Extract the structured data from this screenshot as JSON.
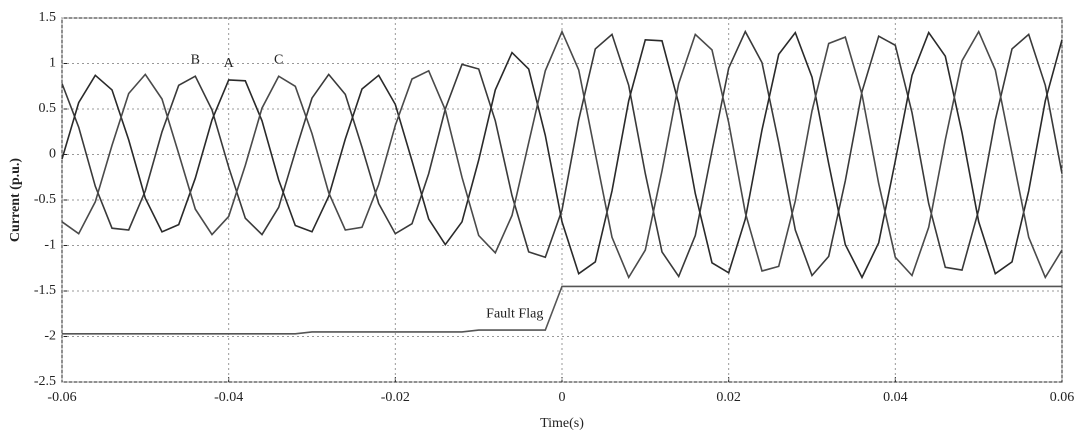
{
  "chart_data": {
    "type": "line",
    "xlabel": "Time(s)",
    "ylabel": "Current (p.u.)",
    "x": [
      -0.06,
      -0.058,
      -0.056,
      -0.054,
      -0.052,
      -0.05,
      -0.048,
      -0.046,
      -0.044,
      -0.042,
      -0.04,
      -0.038,
      -0.036,
      -0.034,
      -0.032,
      -0.03,
      -0.028,
      -0.026,
      -0.024,
      -0.022,
      -0.02,
      -0.018,
      -0.016,
      -0.014,
      -0.012,
      -0.01,
      -0.008,
      -0.006,
      -0.004,
      -0.002,
      0,
      0.002,
      0.004,
      0.006,
      0.008,
      0.01,
      0.012,
      0.014,
      0.016,
      0.018,
      0.02,
      0.022,
      0.024,
      0.026,
      0.028,
      0.03,
      0.032,
      0.034,
      0.036,
      0.038,
      0.04,
      0.042,
      0.044,
      0.046,
      0.048,
      0.05,
      0.052,
      0.054,
      0.056,
      0.058,
      0.06
    ],
    "series": [
      {
        "name": "B",
        "color": "#3a3a3a",
        "values": [
          0.78,
          0.3,
          -0.35,
          -0.81,
          -0.83,
          -0.4,
          0.25,
          0.76,
          0.86,
          0.49,
          -0.14,
          -0.7,
          -0.88,
          -0.58,
          0.03,
          0.62,
          0.88,
          0.66,
          0.08,
          -0.54,
          -0.87,
          -0.76,
          -0.21,
          0.5,
          0.99,
          0.94,
          0.37,
          -0.45,
          -1.07,
          -1.13,
          -0.61,
          0.38,
          1.16,
          1.32,
          0.76,
          -0.21,
          -1.07,
          -1.34,
          -0.89,
          0.04,
          0.95,
          1.35,
          1.01,
          0.13,
          -0.83,
          -1.33,
          -1.12,
          -0.29,
          0.69,
          1.3,
          1.2,
          0.46,
          -0.54,
          -1.24,
          -1.27,
          -0.61,
          0.38,
          1.16,
          1.32,
          0.76,
          -0.21
        ]
      },
      {
        "name": "A",
        "color": "#2a2a2a",
        "values": [
          -0.05,
          0.57,
          0.87,
          0.71,
          0.16,
          -0.48,
          -0.85,
          -0.77,
          -0.26,
          0.38,
          0.82,
          0.81,
          0.37,
          -0.28,
          -0.78,
          -0.85,
          -0.46,
          0.17,
          0.72,
          0.87,
          0.55,
          -0.07,
          -0.71,
          -0.99,
          -0.74,
          -0.06,
          0.71,
          1.12,
          0.94,
          0.21,
          -0.74,
          -1.31,
          -1.18,
          -0.4,
          0.59,
          1.26,
          1.25,
          0.56,
          -0.43,
          -1.19,
          -1.3,
          -0.71,
          0.27,
          1.1,
          1.34,
          0.85,
          -0.1,
          -0.99,
          -1.35,
          -0.97,
          -0.07,
          0.87,
          1.34,
          1.08,
          0.24,
          -0.74,
          -1.31,
          -1.18,
          -0.4,
          0.59,
          1.26
        ]
      },
      {
        "name": "C",
        "color": "#4a4a4a",
        "values": [
          -0.74,
          -0.87,
          -0.52,
          0.1,
          0.67,
          0.88,
          0.61,
          0.01,
          -0.6,
          -0.88,
          -0.68,
          -0.12,
          0.51,
          0.86,
          0.75,
          0.23,
          -0.42,
          -0.83,
          -0.8,
          -0.33,
          0.32,
          0.83,
          0.92,
          0.49,
          -0.25,
          -0.89,
          -1.08,
          -0.67,
          0.13,
          0.92,
          1.35,
          0.93,
          0.01,
          -0.91,
          -1.35,
          -1.05,
          -0.18,
          0.78,
          1.32,
          1.15,
          0.35,
          -0.64,
          -1.28,
          -1.23,
          -0.51,
          0.48,
          1.22,
          1.29,
          0.66,
          -0.32,
          -1.13,
          -1.33,
          -0.8,
          0.16,
          1.03,
          1.35,
          0.93,
          0.01,
          -0.91,
          -1.35,
          -1.05
        ]
      },
      {
        "name": "Fault Flag",
        "color": "#555555",
        "values": [
          -1.97,
          -1.97,
          -1.97,
          -1.97,
          -1.97,
          -1.97,
          -1.97,
          -1.97,
          -1.97,
          -1.97,
          -1.97,
          -1.97,
          -1.97,
          -1.97,
          -1.97,
          -1.95,
          -1.95,
          -1.95,
          -1.95,
          -1.95,
          -1.95,
          -1.95,
          -1.95,
          -1.95,
          -1.95,
          -1.93,
          -1.93,
          -1.93,
          -1.93,
          -1.93,
          -1.45,
          -1.45,
          -1.45,
          -1.45,
          -1.45,
          -1.45,
          -1.45,
          -1.45,
          -1.45,
          -1.45,
          -1.45,
          -1.45,
          -1.45,
          -1.45,
          -1.45,
          -1.45,
          -1.45,
          -1.45,
          -1.45,
          -1.45,
          -1.45,
          -1.45,
          -1.45,
          -1.45,
          -1.45,
          -1.45,
          -1.45,
          -1.45,
          -1.45,
          -1.45,
          -1.45
        ]
      }
    ],
    "xlim": [
      -0.06,
      0.06
    ],
    "xticks": [
      -0.06,
      -0.04,
      -0.02,
      0,
      0.02,
      0.04,
      0.06
    ],
    "ylim": [
      -2.5,
      1.5
    ],
    "yticks": [
      -2.5,
      -2,
      -1.5,
      -1,
      -0.5,
      0,
      0.5,
      1,
      1.5
    ],
    "grid": true
  }
}
